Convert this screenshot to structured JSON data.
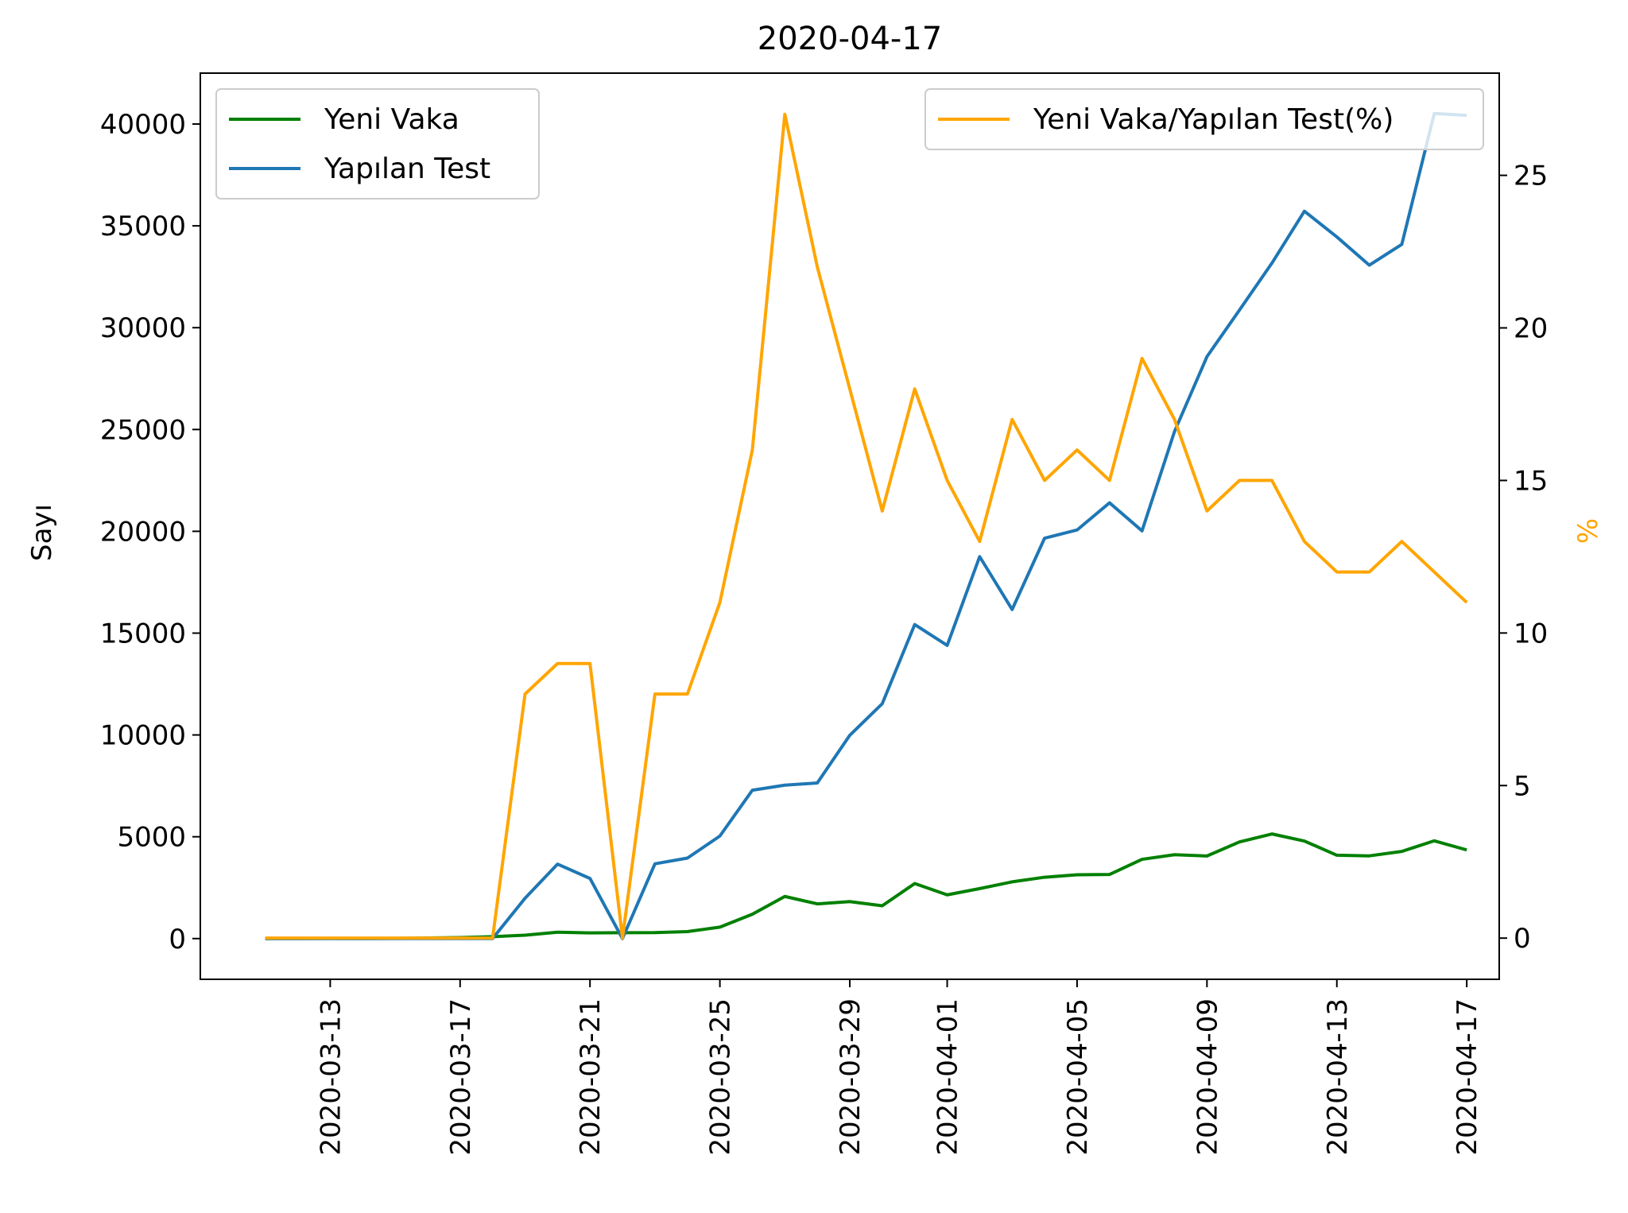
{
  "chart_data": {
    "type": "line",
    "title": "2020-04-17",
    "ylabel_left": "Sayı",
    "ylabel_right": "%",
    "ylim_left": [
      -2000,
      42500
    ],
    "ylim_right": [
      -1.35,
      28.35
    ],
    "xlim": [
      "2020-03-09",
      "2020-04-18"
    ],
    "x_ticks": [
      "2020-03-13",
      "2020-03-17",
      "2020-03-21",
      "2020-03-25",
      "2020-03-29",
      "2020-04-01",
      "2020-04-05",
      "2020-04-09",
      "2020-04-13",
      "2020-04-17"
    ],
    "y_ticks_left": [
      0,
      5000,
      10000,
      15000,
      20000,
      25000,
      30000,
      35000,
      40000
    ],
    "y_ticks_right": [
      0,
      5,
      10,
      15,
      20,
      25
    ],
    "dates": [
      "2020-03-11",
      "2020-03-12",
      "2020-03-13",
      "2020-03-14",
      "2020-03-15",
      "2020-03-16",
      "2020-03-17",
      "2020-03-18",
      "2020-03-19",
      "2020-03-20",
      "2020-03-21",
      "2020-03-22",
      "2020-03-23",
      "2020-03-24",
      "2020-03-25",
      "2020-03-26",
      "2020-03-27",
      "2020-03-28",
      "2020-03-29",
      "2020-03-30",
      "2020-03-31",
      "2020-04-01",
      "2020-04-02",
      "2020-04-03",
      "2020-04-04",
      "2020-04-05",
      "2020-04-06",
      "2020-04-07",
      "2020-04-08",
      "2020-04-09",
      "2020-04-10",
      "2020-04-11",
      "2020-04-12",
      "2020-04-13",
      "2020-04-14",
      "2020-04-15",
      "2020-04-16",
      "2020-04-17"
    ],
    "series": [
      {
        "name": "Yeni Vaka",
        "axis": "left",
        "color": "#008000",
        "values": [
          1,
          1,
          4,
          1,
          12,
          29,
          47,
          93,
          168,
          311,
          277,
          289,
          293,
          343,
          561,
          1196,
          2069,
          1704,
          1815,
          1610,
          2704,
          2148,
          2456,
          2786,
          3013,
          3135,
          3148,
          3892,
          4117,
          4056,
          4747,
          5138,
          4789,
          4093,
          4062,
          4281,
          4801,
          4353
        ]
      },
      {
        "name": "Yapılan Test",
        "axis": "left",
        "color": "#1f77b4",
        "values": [
          0,
          0,
          0,
          0,
          0,
          0,
          0,
          0,
          1981,
          3656,
          2953,
          0,
          3672,
          3952,
          5035,
          7286,
          7533,
          7641,
          9982,
          11535,
          15422,
          14396,
          18757,
          16160,
          19664,
          20065,
          21400,
          20023,
          24900,
          28578,
          30864,
          33170,
          35720,
          34456,
          33070,
          34090,
          40520,
          40427
        ]
      }
    ],
    "series_right": [
      {
        "name": "Yeni Vaka/Yapılan Test(%)",
        "axis": "right",
        "color": "#ffa500",
        "values": [
          0,
          0,
          0,
          0,
          0,
          0,
          0,
          0,
          8,
          9,
          9,
          0,
          8,
          8,
          11,
          16,
          27,
          22,
          18,
          14,
          18,
          15,
          13,
          17,
          15,
          16,
          15,
          19,
          17,
          14,
          15,
          15,
          13,
          12,
          12,
          13,
          12,
          11
        ]
      }
    ],
    "legend_left": {
      "placement": "upper-left"
    },
    "legend_right": {
      "placement": "upper-right"
    },
    "grid": false
  }
}
